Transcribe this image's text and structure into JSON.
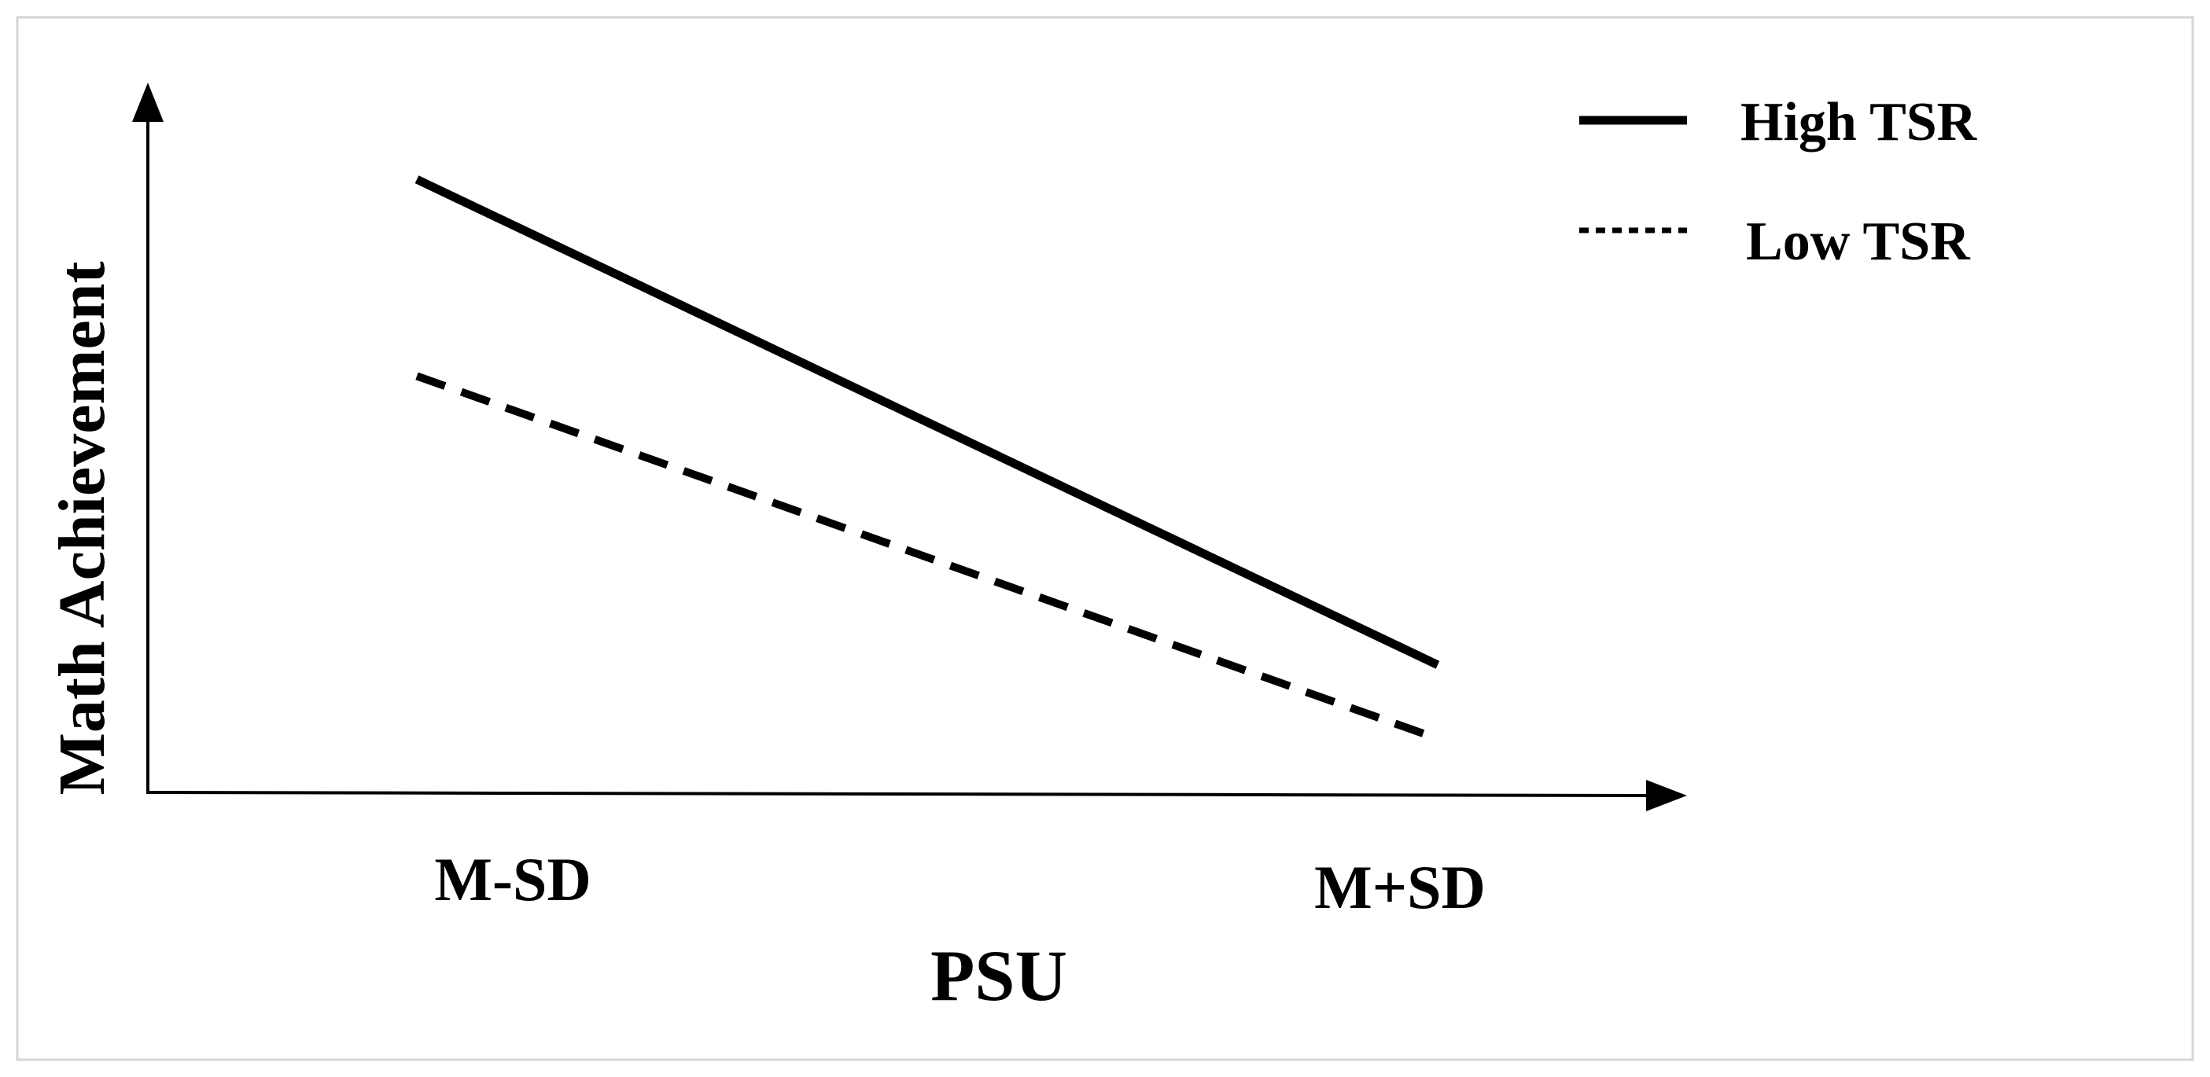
{
  "chart_data": {
    "type": "line",
    "title": "",
    "xlabel": "PSU",
    "ylabel": "Math Achievement",
    "categories": [
      "M-SD",
      "M+SD"
    ],
    "series": [
      {
        "name": "High TSR",
        "values": [
          100,
          21
        ],
        "line_style": "solid"
      },
      {
        "name": "Low TSR",
        "values": [
          68,
          9
        ],
        "line_style": "dashed"
      }
    ],
    "ylim": [
      0,
      110
    ],
    "grid": false,
    "legend_position": "top-right",
    "line_color": "#000000"
  }
}
